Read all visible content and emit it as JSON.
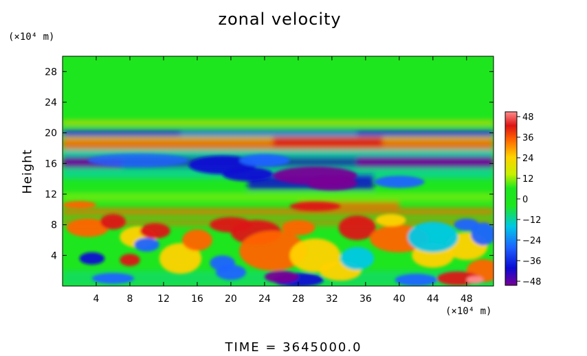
{
  "chart_data": {
    "type": "heatmap",
    "title": "zonal velocity",
    "ylabel": "Height",
    "xlabel": "",
    "y_unit": "(×10⁴ m)",
    "x_unit": "(×10⁴ m)",
    "x_ticks": [
      4,
      8,
      12,
      16,
      20,
      24,
      28,
      32,
      36,
      40,
      44,
      48
    ],
    "y_ticks": [
      4,
      8,
      12,
      16,
      20,
      24,
      28
    ],
    "xlim": [
      0,
      51.2
    ],
    "ylim": [
      0,
      30
    ],
    "colorbar": {
      "ticks": [
        48,
        36,
        24,
        12,
        0,
        -12,
        -24,
        -36,
        -48
      ],
      "labels": [
        "48",
        "36",
        "24",
        "12",
        "0",
        "−12",
        "−24",
        "−36",
        "−48"
      ],
      "range": [
        -48,
        48
      ]
    },
    "colors": {
      "background_field": "#1ee61e",
      "cmap": [
        "#780096",
        "#0a0ad2",
        "#1e64ff",
        "#00c8e6",
        "#1ee61e",
        "#c8f000",
        "#ffd200",
        "#ff6400",
        "#dc1414",
        "#ff8c8c"
      ]
    },
    "features": [
      {
        "x": [
          0,
          51.2
        ],
        "y": 19.9,
        "value": -36,
        "note": "narrow band near 20"
      },
      {
        "x": [
          0,
          51.2
        ],
        "y": 18.4,
        "value": 24
      },
      {
        "x": [
          0,
          51.2
        ],
        "y": 16.2,
        "value": -42
      },
      {
        "x": [
          20,
          40
        ],
        "y": 14.0,
        "value": -36
      },
      {
        "x": [
          0,
          51.2
        ],
        "y": 9.5,
        "value": 20
      },
      {
        "x": [
          0,
          51.2
        ],
        "y": [
          0,
          9
        ],
        "value": "mixed +/-40"
      }
    ]
  },
  "footer": {
    "time_label": "TIME = 3645000.0"
  }
}
